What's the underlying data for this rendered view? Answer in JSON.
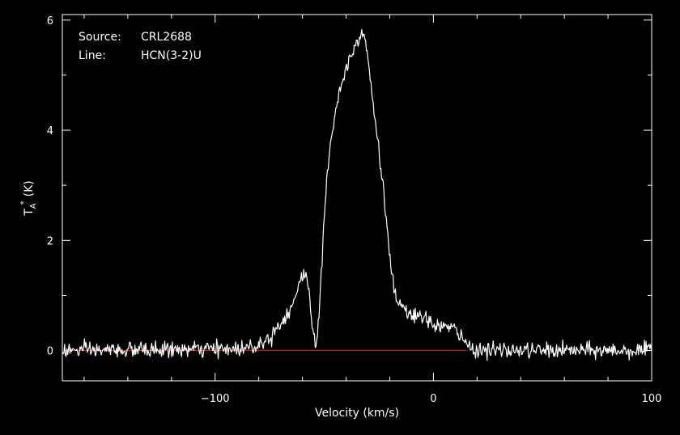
{
  "chart_data": {
    "type": "line",
    "xlabel": "Velocity (km/s)",
    "ylabel": "T",
    "ylabel_sub": "A",
    "ylabel_sup": "*",
    "ylabel_unit": "(K)",
    "xlim": [
      -170,
      100
    ],
    "ylim": [
      -0.55,
      6.1
    ],
    "xticks": [
      -100,
      0,
      100
    ],
    "xtick_labels": [
      "−100",
      "0",
      "100"
    ],
    "yticks": [
      0,
      2,
      4,
      6
    ],
    "ytick_labels": [
      "0",
      "2",
      "4",
      "6"
    ],
    "annotations": {
      "source_label": "Source:",
      "source_value": "CRL2688",
      "line_label": "Line:",
      "line_value": "HCN(3-2)U"
    },
    "baseline": {
      "y": 0,
      "x_range": [
        -170,
        15
      ],
      "color": "#ff0000"
    },
    "colors": {
      "background": "#000000",
      "axes": "#ffffff",
      "spectrum": "#ffffff"
    },
    "noise_rms": 0.07,
    "series": [
      {
        "x": [
          -170,
          -110,
          -90,
          -82,
          -76,
          -72,
          -68,
          -65,
          -63,
          -61,
          -59,
          -58,
          -57,
          -56,
          -55,
          -54,
          -53,
          -52,
          -51,
          -50,
          -49,
          -48,
          -47,
          -46,
          -45,
          -44,
          -42,
          -40,
          -38,
          -36,
          -34,
          -33,
          -32,
          -31,
          -30,
          -29,
          -28,
          -26,
          -24,
          -22,
          -21,
          -20,
          -19,
          -18,
          -17,
          -15,
          -13,
          -10,
          -6,
          -2,
          2,
          6,
          9,
          11,
          13,
          15,
          17,
          20,
          30,
          60,
          100
        ],
        "y": [
          0.0,
          0.02,
          0.03,
          0.08,
          0.2,
          0.4,
          0.6,
          0.8,
          1.0,
          1.25,
          1.4,
          1.35,
          1.05,
          0.7,
          0.35,
          0.1,
          0.35,
          0.9,
          1.6,
          2.4,
          3.0,
          3.5,
          3.85,
          4.05,
          4.3,
          4.55,
          4.85,
          5.1,
          5.35,
          5.55,
          5.7,
          5.8,
          5.78,
          5.6,
          5.3,
          4.95,
          4.6,
          4.0,
          3.3,
          2.55,
          2.15,
          1.75,
          1.4,
          1.1,
          0.9,
          0.78,
          0.7,
          0.65,
          0.6,
          0.52,
          0.46,
          0.42,
          0.4,
          0.35,
          0.22,
          0.12,
          0.05,
          0.02,
          0.0,
          0.0,
          0.0
        ]
      }
    ]
  }
}
